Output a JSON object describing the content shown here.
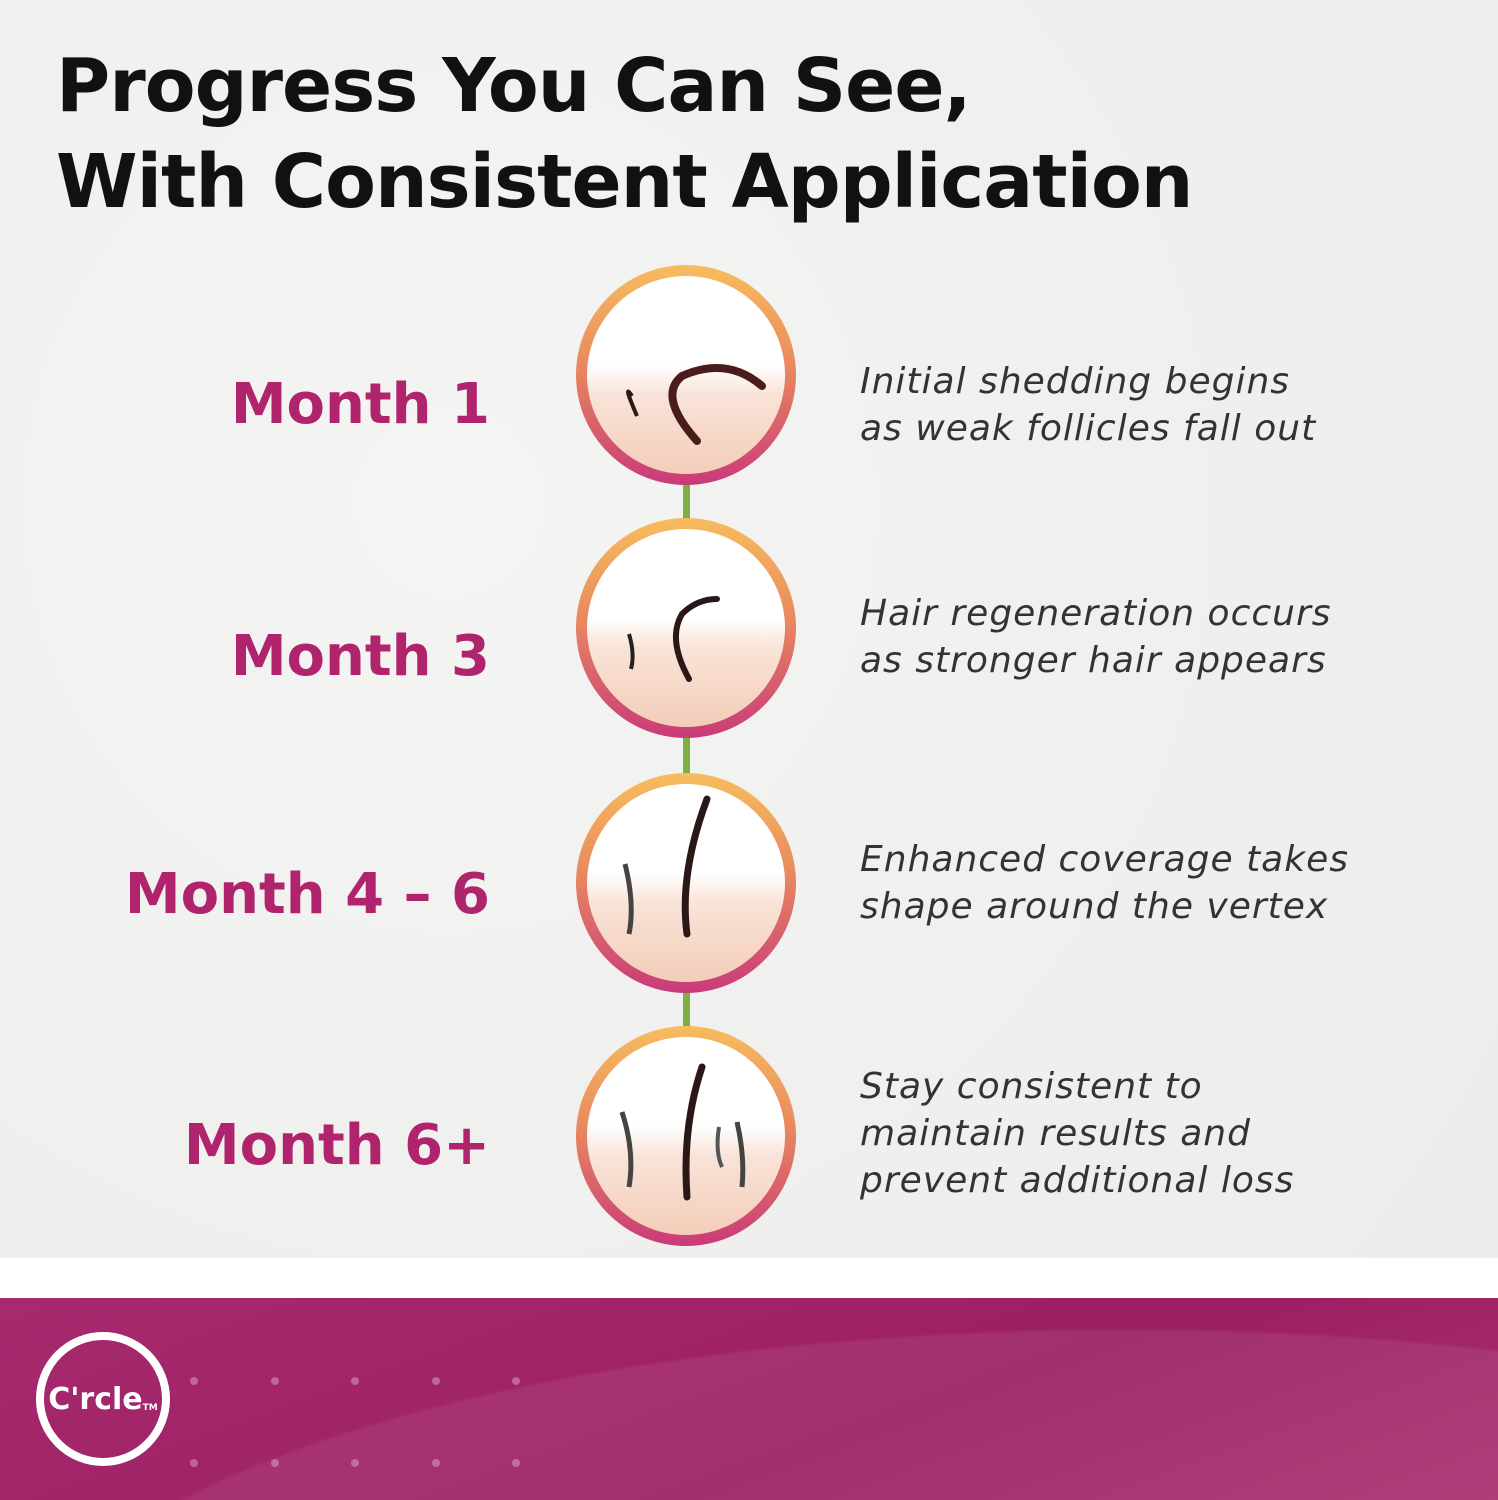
{
  "title": {
    "line1": "Progress You Can See,",
    "line2": "With Consistent Application"
  },
  "steps": [
    {
      "label": "Month 1",
      "desc1": "Initial shedding begins",
      "desc2": "as weak follicles fall out"
    },
    {
      "label": "Month 3",
      "desc1": "Hair regeneration occurs",
      "desc2": "as stronger hair appears"
    },
    {
      "label": "Month 4 – 6",
      "desc1": "Enhanced coverage takes",
      "desc2": "shape around the vertex"
    },
    {
      "label": "Month 6+",
      "desc1": "Stay consistent to",
      "desc2": "maintain results and",
      "desc3": "prevent additional loss"
    }
  ],
  "footer": {
    "logo_text": "C'rcle",
    "trademark": "TM"
  },
  "colors": {
    "accent": "#b0246e",
    "connector": "#7fae42",
    "footer": "#9e2064"
  }
}
